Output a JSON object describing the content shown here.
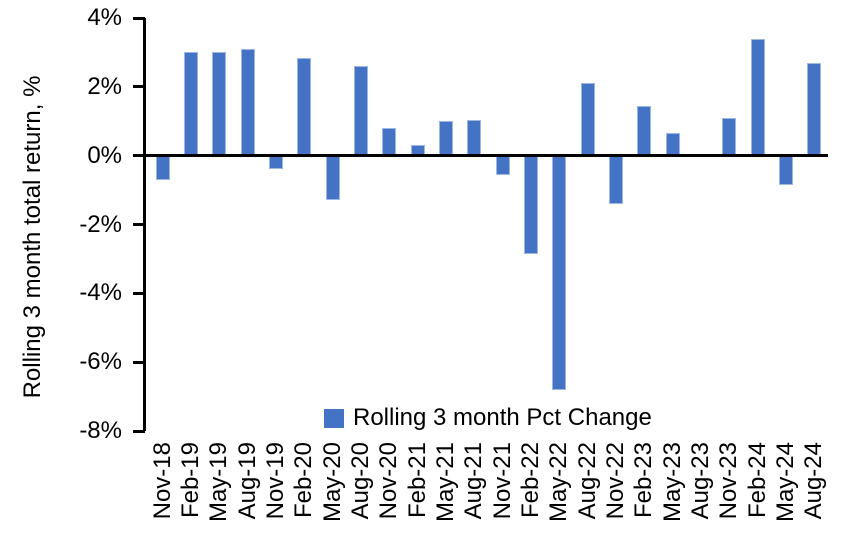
{
  "chart_data": {
    "type": "bar",
    "title": "",
    "xlabel": "",
    "ylabel": "Rolling 3 month total return, %",
    "categories": [
      "Nov-18",
      "Feb-19",
      "May-19",
      "Aug-19",
      "Nov-19",
      "Feb-20",
      "May-20",
      "Aug-20",
      "Nov-20",
      "Feb-21",
      "May-21",
      "Aug-21",
      "Nov-21",
      "Feb-22",
      "May-22",
      "Aug-22",
      "Nov-22",
      "Feb-23",
      "May-23",
      "Aug-23",
      "Nov-23",
      "Feb-24",
      "May-24",
      "Aug-24"
    ],
    "values": [
      -0.7,
      3.0,
      3.0,
      3.1,
      -0.4,
      2.85,
      -1.3,
      2.6,
      0.8,
      0.3,
      1.0,
      1.05,
      -0.55,
      -2.85,
      -6.8,
      2.1,
      -1.4,
      1.45,
      0.65,
      0.0,
      1.1,
      3.4,
      -0.85,
      2.7
    ],
    "ylim": [
      -8,
      4
    ],
    "yticks": [
      4,
      2,
      0,
      -2,
      -4,
      -6,
      -8
    ],
    "ytick_labels": [
      "4%",
      "2%",
      "0%",
      "-2%",
      "-4%",
      "-6%",
      "-8%"
    ],
    "grid": false,
    "legend": {
      "position": "bottom",
      "entries": [
        {
          "label": "Rolling 3 month Pct Change",
          "color": "#4472C4"
        }
      ]
    },
    "colors": {
      "bar_fill": "#4472C4",
      "bar_border": "#9DB6E4",
      "axis": "#000000",
      "text": "#000000",
      "background": "#FFFFFF"
    }
  }
}
